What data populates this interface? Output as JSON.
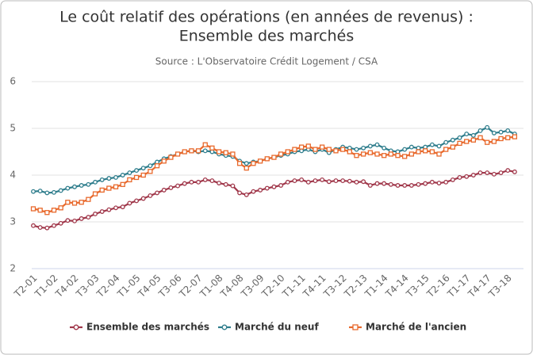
{
  "chart_data": {
    "type": "line",
    "title": [
      "Le coût relatif des opérations (en années de revenus) :",
      "Ensemble des marchés"
    ],
    "subtitle": "Source : L'Observatoire Crédit Logement / CSA",
    "categories": [
      "T2-01",
      null,
      null,
      "T1-02",
      null,
      null,
      "T4-02",
      null,
      null,
      "T3-03",
      null,
      null,
      "T2-04",
      null,
      null,
      "T1-05",
      null,
      null,
      "T4-05",
      null,
      null,
      "T3-06",
      null,
      null,
      "T2-07",
      null,
      null,
      "T1-08",
      null,
      null,
      "T4-08",
      null,
      null,
      "T3-09",
      null,
      null,
      "T2-10",
      null,
      null,
      "T1-11",
      null,
      null,
      "T4-11",
      null,
      null,
      "T3-12",
      null,
      null,
      "T2-13",
      null,
      null,
      "T1-14",
      null,
      null,
      "T4-14",
      null,
      null,
      "T3-15",
      null,
      null,
      "T2-16",
      null,
      null,
      "T1-17",
      null,
      null,
      "T4-17",
      null,
      null,
      "T3-18",
      null
    ],
    "series": [
      {
        "name": "Ensemble des marchés",
        "color": "#a0374a",
        "marker": "circle",
        "values": [
          2.92,
          2.88,
          2.87,
          2.92,
          2.97,
          3.03,
          3.02,
          3.07,
          3.1,
          3.17,
          3.22,
          3.26,
          3.3,
          3.32,
          3.4,
          3.45,
          3.5,
          3.56,
          3.62,
          3.68,
          3.73,
          3.77,
          3.82,
          3.85,
          3.85,
          3.9,
          3.88,
          3.83,
          3.8,
          3.77,
          3.62,
          3.58,
          3.65,
          3.68,
          3.72,
          3.75,
          3.78,
          3.85,
          3.88,
          3.9,
          3.85,
          3.88,
          3.9,
          3.86,
          3.88,
          3.88,
          3.87,
          3.85,
          3.86,
          3.78,
          3.82,
          3.82,
          3.8,
          3.78,
          3.78,
          3.78,
          3.8,
          3.82,
          3.85,
          3.83,
          3.85,
          3.9,
          3.95,
          3.97,
          4.0,
          4.05,
          4.05,
          4.02,
          4.05,
          4.1,
          4.07
        ]
      },
      {
        "name": "Marché du neuf",
        "color": "#2e7d8c",
        "marker": "circle",
        "values": [
          3.65,
          3.66,
          3.62,
          3.63,
          3.67,
          3.72,
          3.75,
          3.78,
          3.8,
          3.85,
          3.9,
          3.93,
          3.95,
          4.0,
          4.05,
          4.1,
          4.15,
          4.2,
          4.28,
          4.35,
          4.4,
          4.45,
          4.5,
          4.52,
          4.5,
          4.52,
          4.5,
          4.45,
          4.42,
          4.4,
          4.3,
          4.25,
          4.28,
          4.3,
          4.35,
          4.38,
          4.42,
          4.45,
          4.5,
          4.52,
          4.55,
          4.5,
          4.55,
          4.48,
          4.55,
          4.6,
          4.58,
          4.55,
          4.58,
          4.62,
          4.65,
          4.58,
          4.52,
          4.5,
          4.55,
          4.6,
          4.58,
          4.6,
          4.65,
          4.62,
          4.7,
          4.75,
          4.8,
          4.88,
          4.85,
          4.95,
          5.02,
          4.9,
          4.92,
          4.95,
          4.88
        ]
      },
      {
        "name": "Marché de l'ancien",
        "color": "#e8692c",
        "marker": "square",
        "values": [
          3.28,
          3.25,
          3.2,
          3.25,
          3.3,
          3.42,
          3.4,
          3.42,
          3.48,
          3.6,
          3.68,
          3.72,
          3.75,
          3.8,
          3.9,
          3.95,
          4.0,
          4.08,
          4.2,
          4.3,
          4.38,
          4.45,
          4.5,
          4.52,
          4.52,
          4.65,
          4.58,
          4.5,
          4.48,
          4.45,
          4.25,
          4.15,
          4.25,
          4.3,
          4.35,
          4.38,
          4.45,
          4.5,
          4.55,
          4.6,
          4.62,
          4.55,
          4.6,
          4.55,
          4.52,
          4.55,
          4.5,
          4.42,
          4.45,
          4.48,
          4.45,
          4.42,
          4.45,
          4.42,
          4.4,
          4.45,
          4.5,
          4.52,
          4.5,
          4.45,
          4.55,
          4.6,
          4.68,
          4.72,
          4.75,
          4.8,
          4.7,
          4.72,
          4.78,
          4.8,
          4.82
        ]
      }
    ],
    "ylim": [
      2,
      6
    ],
    "yticks": [
      2,
      3,
      4,
      5,
      6
    ],
    "grid": true,
    "legend": "bottom"
  }
}
